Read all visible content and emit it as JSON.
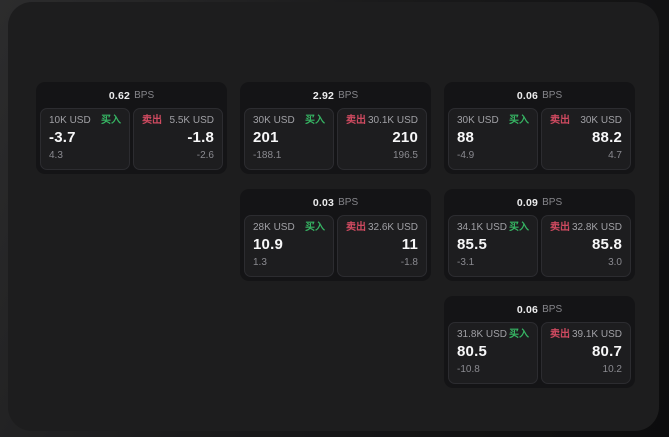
{
  "units": {
    "bps": "BPS"
  },
  "labels": {
    "buy": "买入",
    "sell": "卖出"
  },
  "colors": {
    "buy_green": "#36b463",
    "sell_red": "#cf4a60",
    "window_bg": "#1d1d1e",
    "card_bg": "#141416",
    "panel_bg": "#1d1d1f"
  },
  "cards": [
    {
      "bps": "0.62",
      "buy": {
        "size": "10K USD",
        "price": "-3.7",
        "delta": "4.3"
      },
      "sell": {
        "size": "5.5K USD",
        "price": "-1.8",
        "delta": "-2.6"
      }
    },
    {
      "bps": "2.92",
      "buy": {
        "size": "30K USD",
        "price": "201",
        "delta": "-188.1"
      },
      "sell": {
        "size": "30.1K USD",
        "price": "210",
        "delta": "196.5"
      }
    },
    {
      "bps": "0.06",
      "buy": {
        "size": "30K USD",
        "price": "88",
        "delta": "-4.9"
      },
      "sell": {
        "size": "30K USD",
        "price": "88.2",
        "delta": "4.7"
      }
    },
    {
      "bps": "0.03",
      "buy": {
        "size": "28K USD",
        "price": "10.9",
        "delta": "1.3"
      },
      "sell": {
        "size": "32.6K USD",
        "price": "11",
        "delta": "-1.8"
      }
    },
    {
      "bps": "0.09",
      "buy": {
        "size": "34.1K USD",
        "price": "85.5",
        "delta": "-3.1"
      },
      "sell": {
        "size": "32.8K USD",
        "price": "85.8",
        "delta": "3.0"
      }
    },
    {
      "bps": "0.06",
      "buy": {
        "size": "31.8K USD",
        "price": "80.5",
        "delta": "-10.8"
      },
      "sell": {
        "size": "39.1K USD",
        "price": "80.7",
        "delta": "10.2"
      }
    }
  ]
}
